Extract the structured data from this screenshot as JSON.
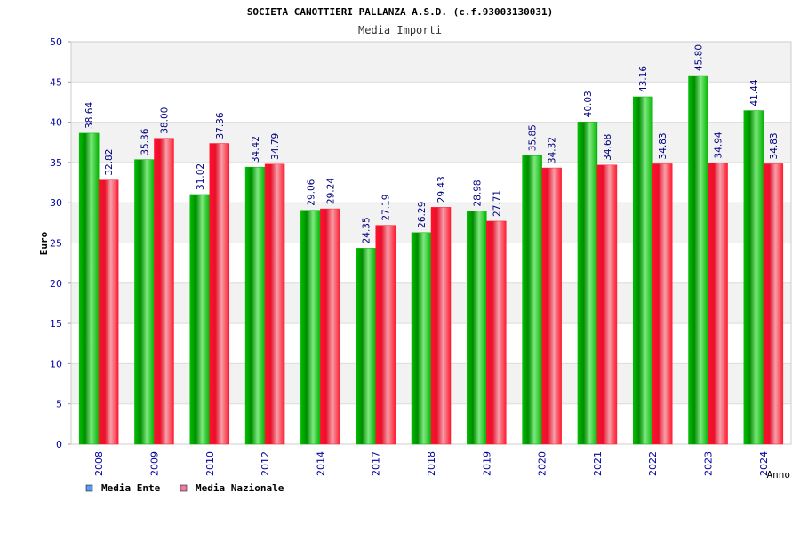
{
  "colors": {
    "ente": "#00b000",
    "nazionale": "#ff1a2e",
    "axis_text": "#0000a0",
    "value_label": "#000080",
    "band": "#f2f2f2",
    "legend_ente": "#5b9bf0",
    "legend_nazionale": "#e7809e"
  },
  "chart_data": {
    "type": "bar",
    "title": "SOCIETA CANOTTIERI PALLANZA A.S.D. (c.f.93003130031)",
    "subtitle": "Media Importi",
    "xlabel": "Anno",
    "ylabel": "Euro",
    "ylim": [
      0,
      50
    ],
    "yticks": [
      0,
      5,
      10,
      15,
      20,
      25,
      30,
      35,
      40,
      45,
      50
    ],
    "grid": true,
    "legend_position": "bottom-left",
    "categories": [
      "2008",
      "2009",
      "2010",
      "2012",
      "2014",
      "2017",
      "2018",
      "2019",
      "2020",
      "2021",
      "2022",
      "2023",
      "2024"
    ],
    "series": [
      {
        "name": "Media Ente",
        "values": [
          38.64,
          35.36,
          31.02,
          34.42,
          29.06,
          24.35,
          26.29,
          28.98,
          35.85,
          40.03,
          43.16,
          45.8,
          41.44
        ],
        "labels": [
          "38.64",
          "35.36",
          "31.02",
          "34.42",
          "29.06",
          "24.35",
          "26.29",
          "28.98",
          "35.85",
          "40.03",
          "43.16",
          "45.80",
          "41.44"
        ]
      },
      {
        "name": "Media Nazionale",
        "values": [
          32.82,
          38.0,
          37.36,
          34.79,
          29.24,
          27.19,
          29.43,
          27.71,
          34.32,
          34.68,
          34.83,
          34.94,
          34.83
        ],
        "labels": [
          "32.82",
          "38.00",
          "37.36",
          "34.79",
          "29.24",
          "27.19",
          "29.43",
          "27.71",
          "34.32",
          "34.68",
          "34.83",
          "34.94",
          "34.83"
        ]
      }
    ]
  }
}
